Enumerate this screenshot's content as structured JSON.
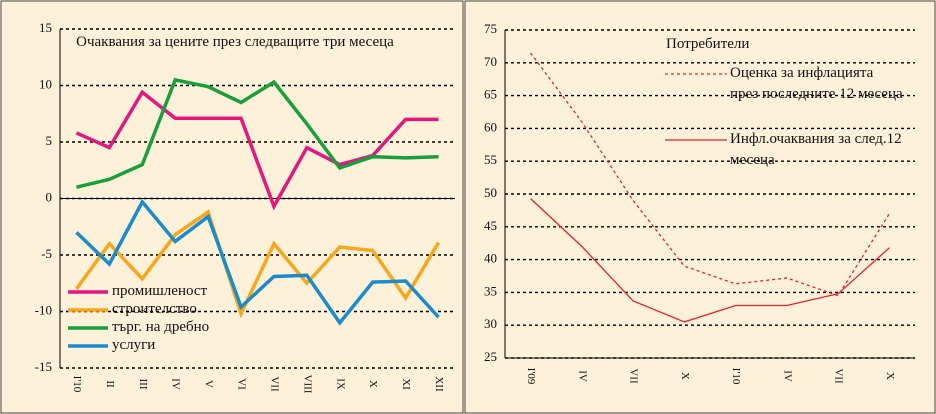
{
  "chart_data": [
    {
      "type": "line",
      "title": "Очаквания за цените през следващите три месеца",
      "categories": [
        "I'10",
        "II",
        "III",
        "IV",
        "V",
        "VI",
        "VII",
        "VIII",
        "IX",
        "X",
        "XI",
        "XII"
      ],
      "series": [
        {
          "name": "промишленост",
          "color": "#e4177f",
          "style": "solid",
          "values": [
            5.8,
            4.5,
            9.4,
            7.1,
            7.1,
            7.1,
            -0.7,
            4.5,
            3.0,
            3.8,
            7.0,
            7.0
          ]
        },
        {
          "name": "строителство",
          "color": "#f6a71c",
          "style": "solid",
          "values": [
            -8.0,
            -4.0,
            -7.1,
            -3.2,
            -1.2,
            -10.2,
            -4.0,
            -7.5,
            -4.3,
            -4.6,
            -8.8,
            -3.9
          ]
        },
        {
          "name": "търг. на дребно",
          "color": "#17a03b",
          "style": "solid",
          "values": [
            1.0,
            1.7,
            3.0,
            10.5,
            9.9,
            8.5,
            10.3,
            6.6,
            2.7,
            3.7,
            3.6,
            3.7
          ]
        },
        {
          "name": "услуги",
          "color": "#1a8ccc",
          "style": "solid",
          "values": [
            -3.0,
            -5.8,
            -0.3,
            -3.8,
            -1.6,
            -9.6,
            -6.9,
            -6.8,
            -11.0,
            -7.4,
            -7.3,
            -10.5
          ]
        }
      ],
      "ylim": [
        -15,
        15
      ],
      "yticks": [
        -15,
        -10,
        -5,
        0,
        5,
        10,
        15
      ],
      "grid": true
    },
    {
      "type": "line",
      "title": "Потребители",
      "categories": [
        "I'09",
        "IV",
        "VII",
        "X",
        "I'10",
        "IV",
        "VII",
        "X"
      ],
      "series": [
        {
          "name": "Оценка за инфлацията през последните 12 месеца",
          "color": "#e8202a",
          "style": "dashed",
          "values": [
            71.5,
            61.0,
            49.0,
            39.0,
            36.3,
            37.2,
            34.5,
            47.0
          ]
        },
        {
          "name": "Инфл.очаквания за след.12 месеца",
          "color": "#e8202a",
          "style": "solid",
          "values": [
            49.3,
            42.0,
            33.7,
            30.5,
            33.0,
            33.0,
            34.8,
            41.8
          ]
        }
      ],
      "ylim": [
        25,
        75
      ],
      "yticks": [
        25,
        30,
        35,
        40,
        45,
        50,
        55,
        60,
        65,
        70,
        75
      ],
      "grid": true
    }
  ]
}
